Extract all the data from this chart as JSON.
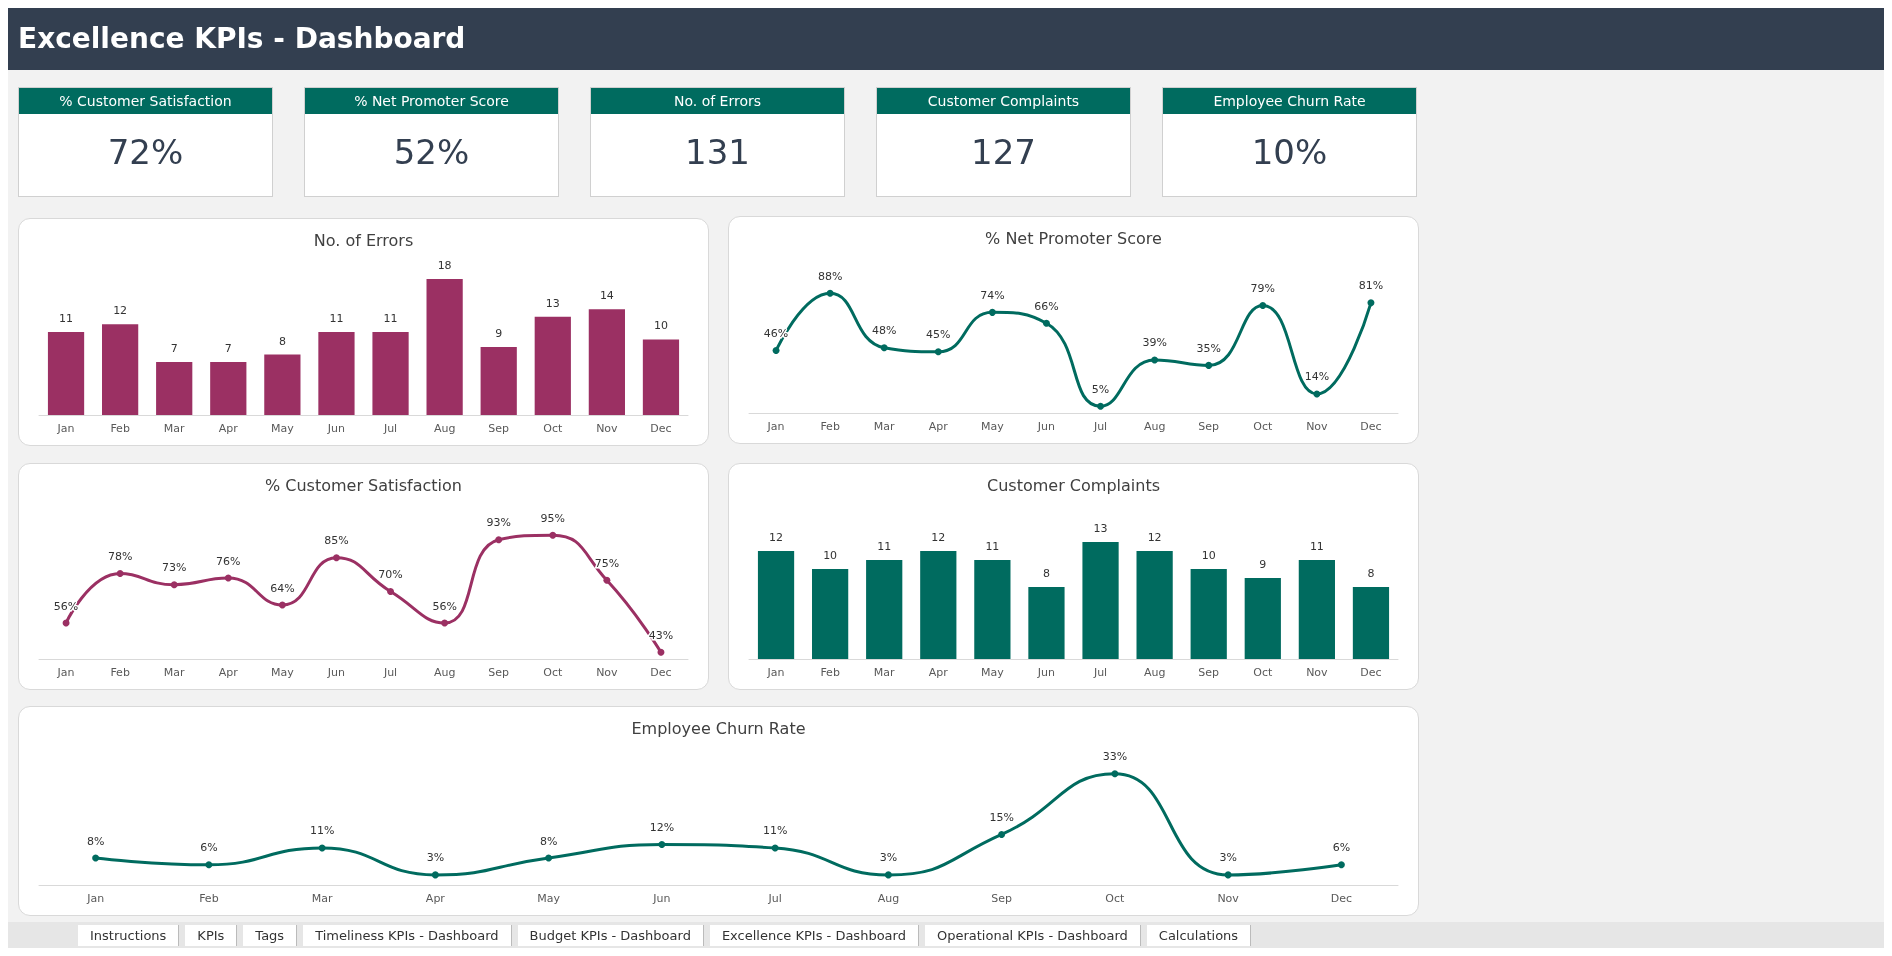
{
  "chart_data": [
    {
      "type": "other",
      "title": "Excellence KPIs - Dashboard",
      "annotations": [
        "Instructions",
        "KPIs",
        "Tags",
        "Timeliness KPIs - Dashboard",
        "Budget KPIs - Dashboard",
        "Excellence KPIs - Dashboard",
        "Operational KPIs - Dashboard",
        "Calculations"
      ]
    },
    {
      "type": "other",
      "title": "% Customer Satisfaction",
      "annotations": [
        "72%"
      ]
    },
    {
      "type": "other",
      "title": "% Net Promoter Score",
      "annotations": [
        "52%"
      ]
    },
    {
      "type": "other",
      "title": "No. of Errors",
      "annotations": [
        "131"
      ]
    },
    {
      "type": "other",
      "title": "Customer Complaints",
      "annotations": [
        "127"
      ]
    },
    {
      "type": "other",
      "title": "Employee Churn Rate",
      "annotations": [
        "10%"
      ]
    },
    {
      "type": "bar",
      "title": "No. of Errors",
      "categories": [
        "Jan",
        "Feb",
        "Mar",
        "Apr",
        "May",
        "Jun",
        "Jul",
        "Aug",
        "Sep",
        "Oct",
        "Nov",
        "Dec"
      ],
      "values": [
        11,
        12,
        7,
        7,
        8,
        11,
        11,
        18,
        9,
        13,
        14,
        10
      ],
      "color": "#9b3063",
      "data_labels": true
    },
    {
      "type": "line",
      "title": "% Net Promoter Score",
      "categories": [
        "Jan",
        "Feb",
        "Mar",
        "Apr",
        "May",
        "Jun",
        "Jul",
        "Aug",
        "Sep",
        "Oct",
        "Nov",
        "Dec"
      ],
      "values": [
        46,
        88,
        48,
        45,
        74,
        66,
        5,
        39,
        35,
        79,
        14,
        81
      ],
      "value_labels": [
        "46%",
        "88%",
        "48%",
        "45%",
        "74%",
        "66%",
        "5%",
        "39%",
        "35%",
        "79%",
        "14%",
        "81%"
      ],
      "color": "#006b5f",
      "marker": "circle"
    },
    {
      "type": "line",
      "title": "% Customer Satisfaction",
      "categories": [
        "Jan",
        "Feb",
        "Mar",
        "Apr",
        "May",
        "Jun",
        "Jul",
        "Aug",
        "Sep",
        "Oct",
        "Nov",
        "Dec"
      ],
      "values": [
        56,
        78,
        73,
        76,
        64,
        85,
        70,
        56,
        93,
        95,
        75,
        43
      ],
      "value_labels": [
        "56%",
        "78%",
        "73%",
        "76%",
        "64%",
        "85%",
        "70%",
        "56%",
        "93%",
        "95%",
        "75%",
        "43%"
      ],
      "color": "#9b3063",
      "marker": "circle"
    },
    {
      "type": "bar",
      "title": "Customer Complaints",
      "categories": [
        "Jan",
        "Feb",
        "Mar",
        "Apr",
        "May",
        "Jun",
        "Jul",
        "Aug",
        "Sep",
        "Oct",
        "Nov",
        "Dec"
      ],
      "values": [
        12,
        10,
        11,
        12,
        11,
        8,
        13,
        12,
        10,
        9,
        11,
        8
      ],
      "color": "#006b5f",
      "data_labels": true
    },
    {
      "type": "line",
      "title": "Employee Churn Rate",
      "categories": [
        "Jan",
        "Feb",
        "Mar",
        "Apr",
        "May",
        "Jun",
        "Jul",
        "Aug",
        "Sep",
        "Oct",
        "Nov",
        "Dec"
      ],
      "values": [
        8,
        6,
        11,
        3,
        8,
        12,
        11,
        3,
        15,
        33,
        3,
        6
      ],
      "value_labels": [
        "8%",
        "6%",
        "11%",
        "3%",
        "8%",
        "12%",
        "11%",
        "3%",
        "15%",
        "33%",
        "3%",
        "6%"
      ],
      "color": "#006b5f",
      "marker": "circle"
    }
  ]
}
